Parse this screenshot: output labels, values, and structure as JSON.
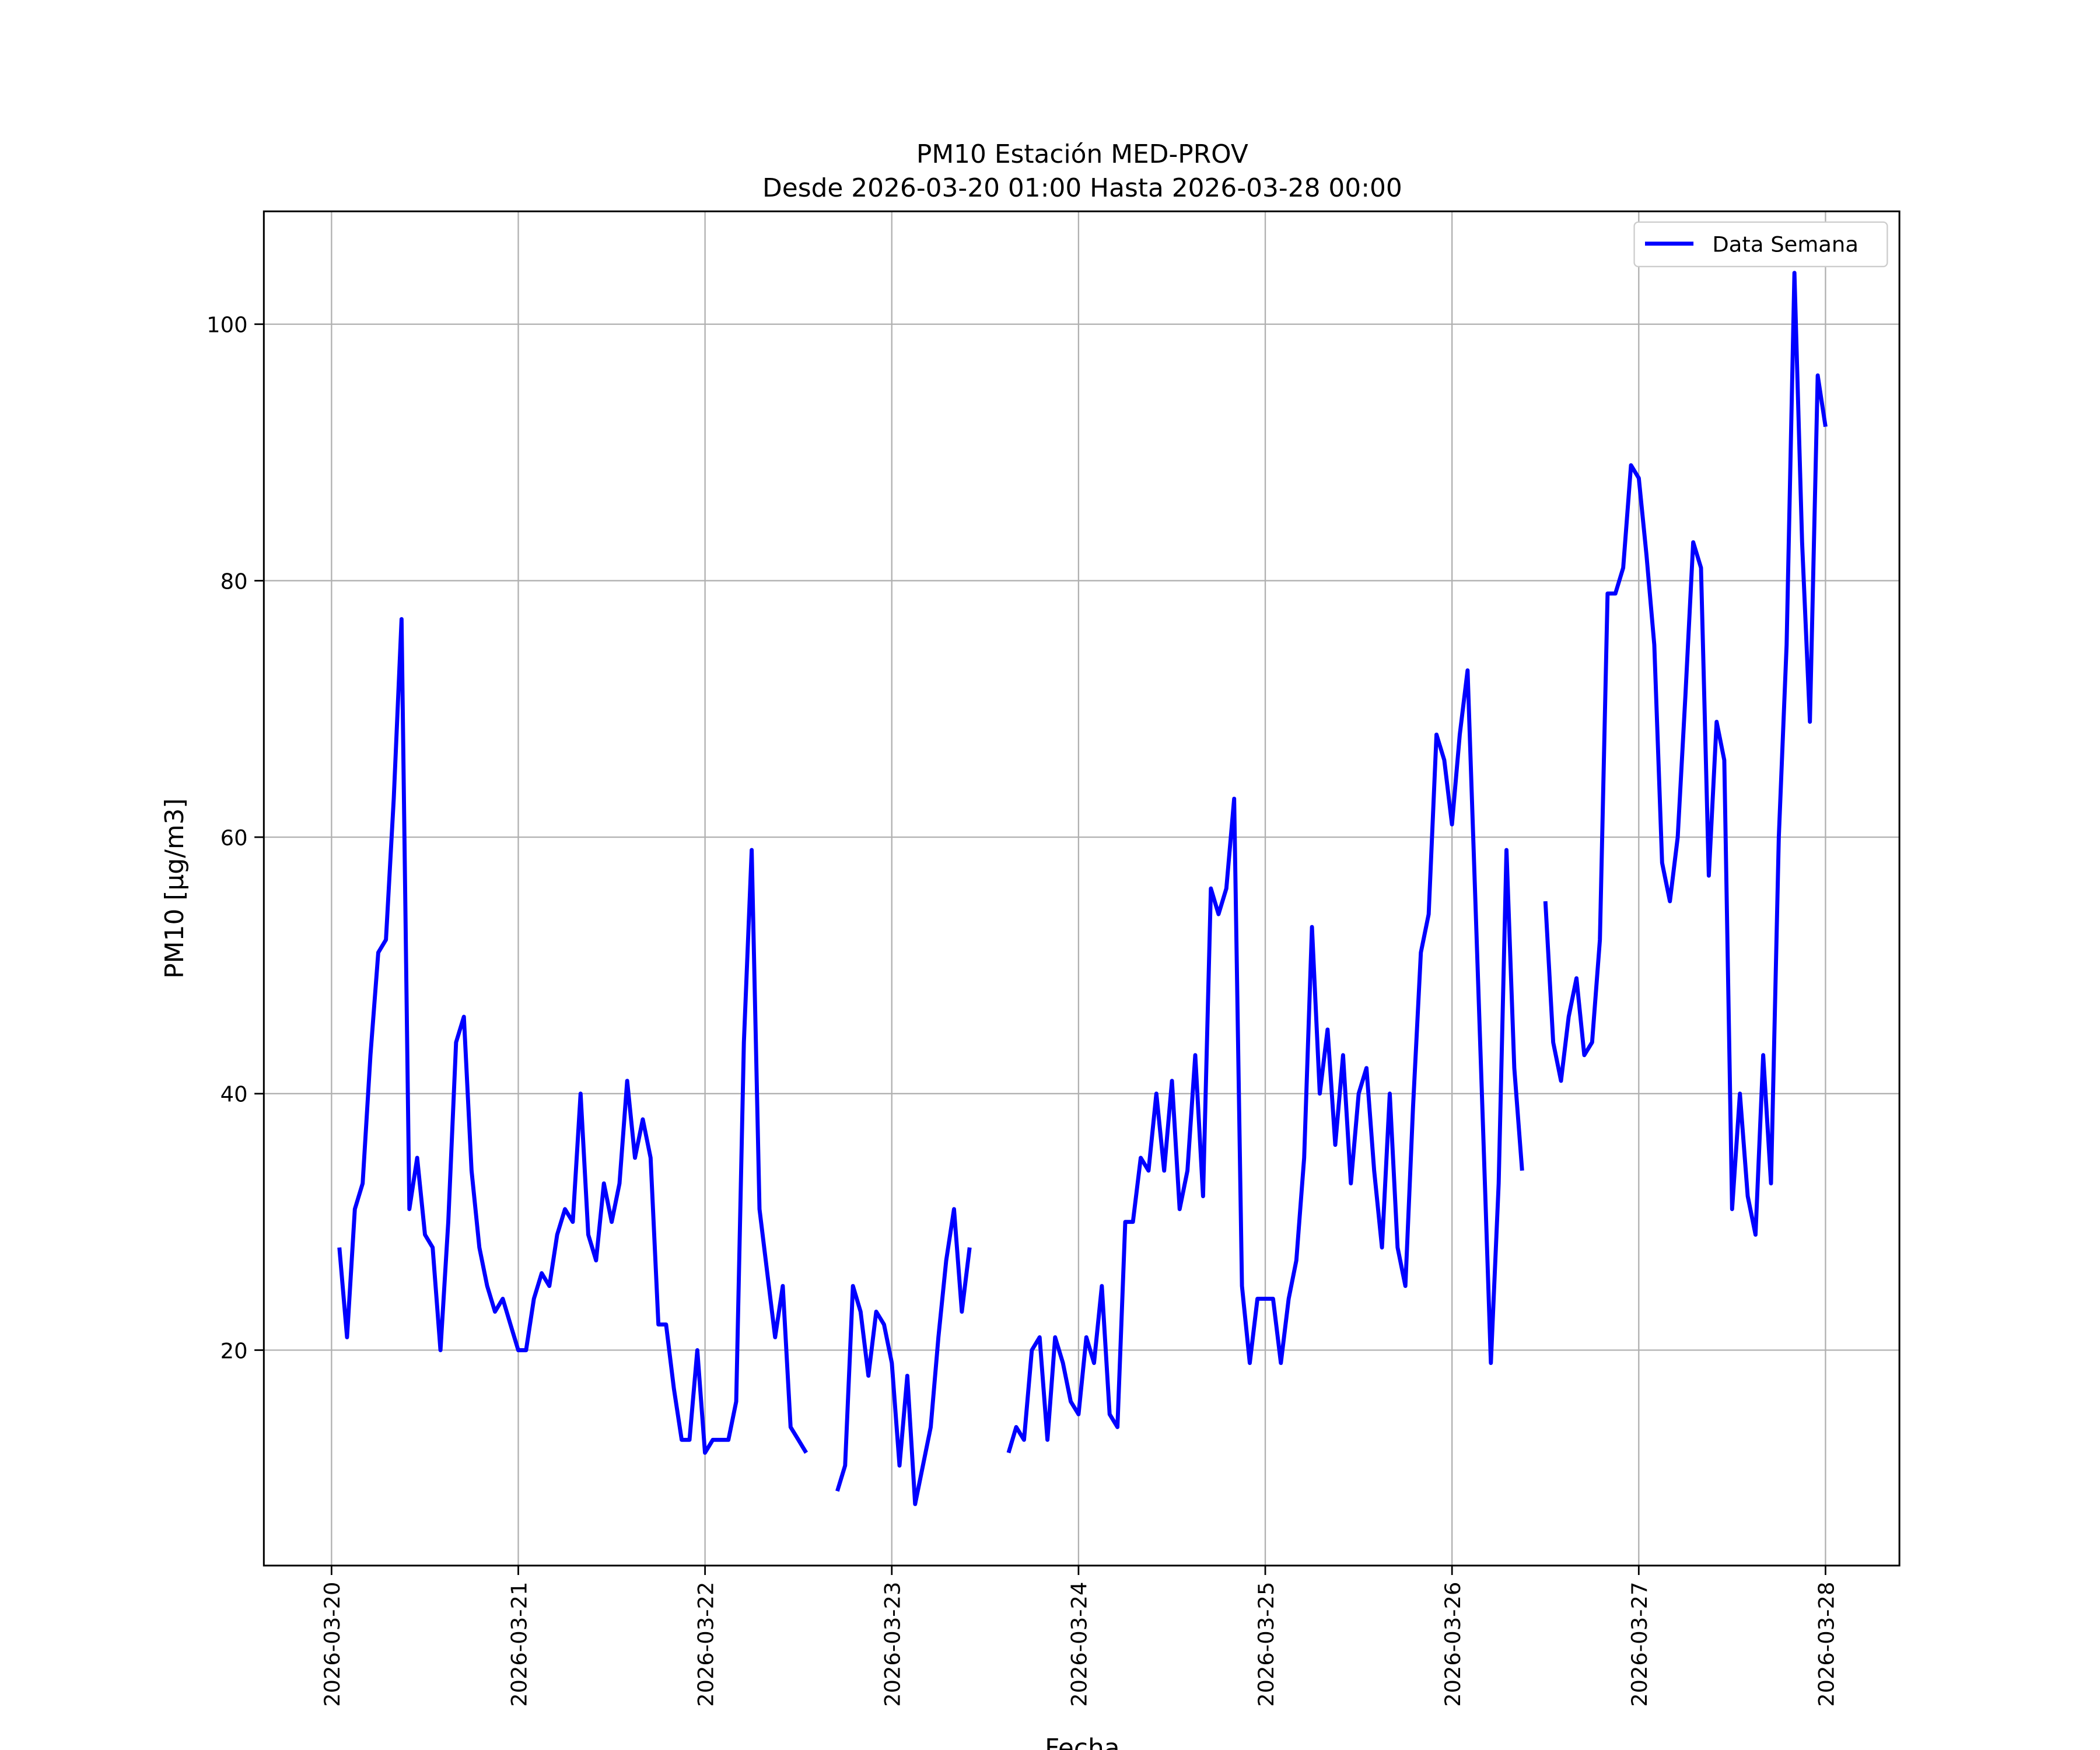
{
  "chart_data": {
    "type": "line",
    "title": "PM10 Estación MED-PROV",
    "subtitle": "Desde 2026-03-20 01:00 Hasta 2026-03-28 00:00",
    "xlabel": "Fecha",
    "ylabel": "PM10 [μg/m3]",
    "x_start": "2026-03-20 01:00",
    "x_step": "1 hour",
    "xlim_hours": [
      -8.7,
      201.5
    ],
    "ylim": [
      3.2,
      108.8
    ],
    "grid": true,
    "legend_position": "top-right",
    "x_ticks": [
      "2026-03-20",
      "2026-03-21",
      "2026-03-22",
      "2026-03-23",
      "2026-03-24",
      "2026-03-25",
      "2026-03-26",
      "2026-03-27",
      "2026-03-28"
    ],
    "y_ticks": [
      20,
      40,
      60,
      80,
      100
    ],
    "series": [
      {
        "name": "Data Semana",
        "color": "#0000ff",
        "values": [
          28,
          21,
          31,
          33,
          43,
          51,
          52,
          63,
          77,
          31,
          35,
          29,
          28,
          20,
          30,
          44,
          46,
          34,
          28,
          25,
          23,
          24,
          22,
          20,
          20,
          24,
          26,
          25,
          29,
          31,
          30,
          40,
          29,
          27,
          33,
          30,
          33,
          41,
          35,
          38,
          35,
          22,
          22,
          17,
          13,
          13,
          20,
          12,
          13,
          13,
          13,
          16,
          44,
          59,
          31,
          26,
          21,
          25,
          14,
          13,
          12,
          null,
          null,
          null,
          9,
          11,
          25,
          23,
          18,
          23,
          22,
          19,
          11,
          18,
          8,
          11,
          14,
          21,
          27,
          31,
          23,
          28,
          null,
          null,
          null,
          null,
          12,
          14,
          13,
          20,
          21,
          13,
          21,
          19,
          16,
          15,
          21,
          19,
          25,
          15,
          14,
          30,
          30,
          35,
          34,
          40,
          34,
          41,
          31,
          34,
          43,
          32,
          56,
          54,
          56,
          63,
          25,
          19,
          24,
          24,
          24,
          19,
          24,
          27,
          35,
          53,
          40,
          45,
          36,
          43,
          33,
          40,
          42,
          34,
          28,
          40,
          28,
          25,
          39,
          51,
          54,
          68,
          66,
          61,
          68,
          73,
          55,
          37,
          19,
          33,
          59,
          42,
          34,
          null,
          null,
          55,
          44,
          41,
          46,
          49,
          43,
          44,
          52,
          79,
          79,
          81,
          89,
          88,
          82,
          75,
          58,
          55,
          60,
          71,
          83,
          81,
          57,
          69,
          66,
          31,
          40,
          32,
          29,
          43,
          33,
          60,
          75,
          104,
          83,
          69,
          96,
          92
        ]
      }
    ]
  }
}
